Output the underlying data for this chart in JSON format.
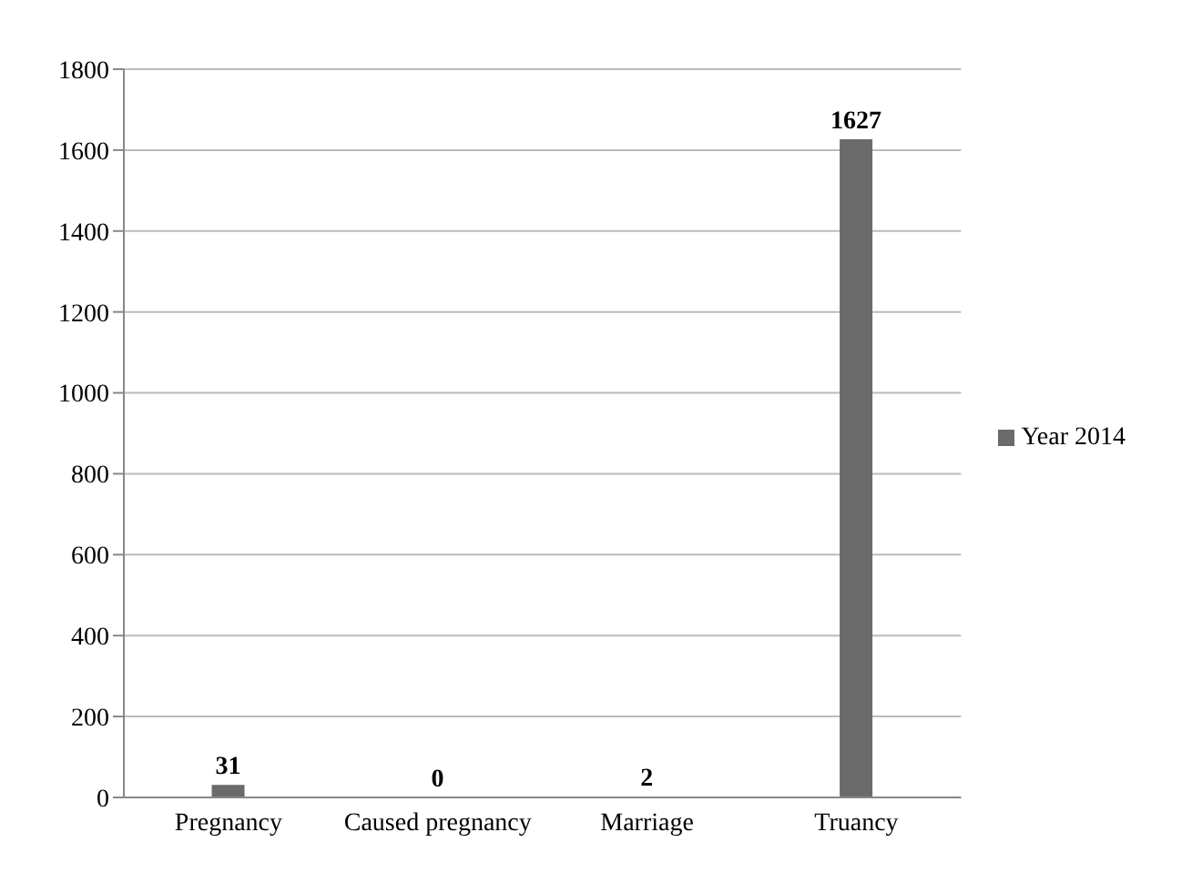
{
  "chart_data": {
    "type": "bar",
    "categories": [
      "Pregnancy",
      "Caused pregnancy",
      "Marriage",
      "Truancy"
    ],
    "series": [
      {
        "name": "Year 2014",
        "color": "#6b6b6b",
        "values": [
          31,
          0,
          2,
          1627
        ]
      }
    ],
    "ylim": [
      0,
      1800
    ],
    "yticks": [
      0,
      200,
      400,
      600,
      800,
      1000,
      1200,
      1400,
      1600,
      1800
    ],
    "grid": "y",
    "legend": "right",
    "data_labels": true
  }
}
